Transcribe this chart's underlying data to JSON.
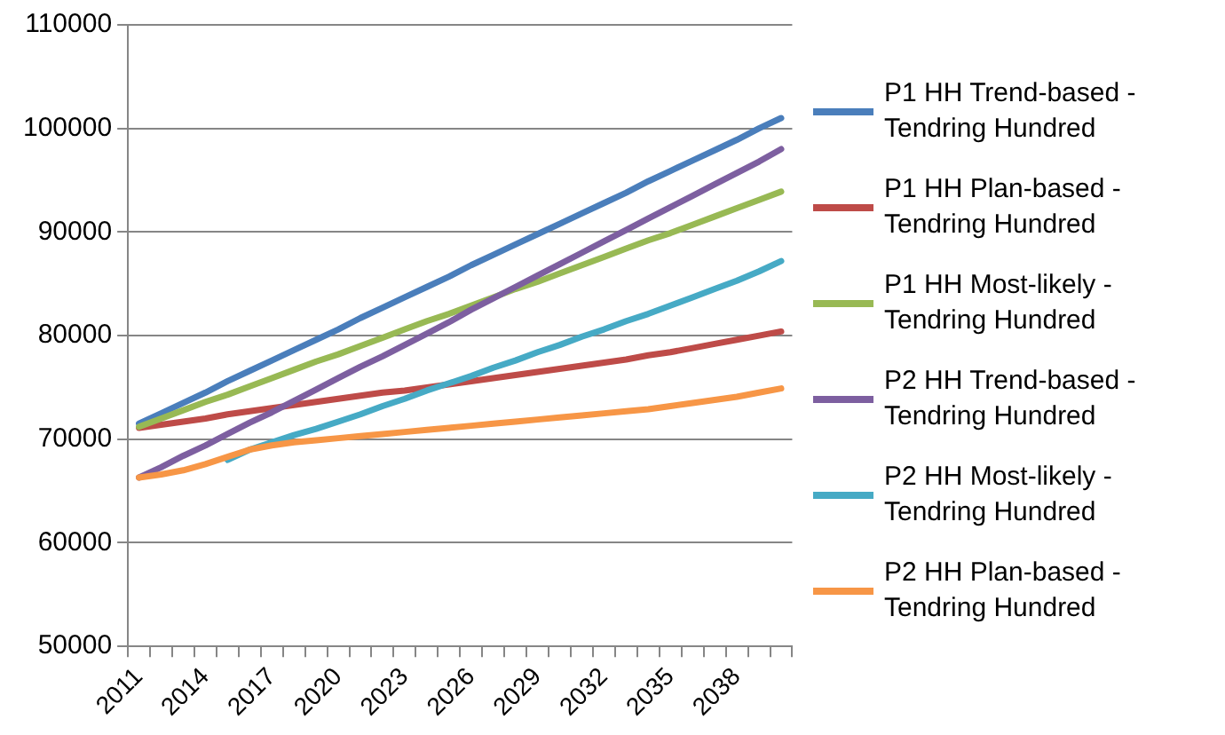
{
  "chart_data": {
    "type": "line",
    "categories": [
      "2011",
      null,
      null,
      "2014",
      null,
      null,
      "2017",
      null,
      null,
      "2020",
      null,
      null,
      "2023",
      null,
      null,
      "2026",
      null,
      null,
      "2029",
      null,
      null,
      "2032",
      null,
      null,
      "2035",
      null,
      null,
      "2038",
      null,
      null
    ],
    "ylim": [
      50000,
      110000
    ],
    "yticks": [
      50000,
      60000,
      70000,
      80000,
      90000,
      100000,
      110000
    ],
    "grid": "y",
    "legend": "right",
    "marker": "none",
    "line_style": "solid",
    "series": [
      {
        "name": "P1 HH Trend-based - Tendring Hundred",
        "color": "#4a7ebb",
        "values": [
          71500,
          72500,
          73500,
          74500,
          75600,
          76600,
          77600,
          78600,
          79600,
          80600,
          81700,
          82700,
          83700,
          84700,
          85700,
          86800,
          87800,
          88800,
          89800,
          90800,
          91800,
          92800,
          93800,
          94900,
          95900,
          96900,
          97900,
          98900,
          100000,
          101000
        ]
      },
      {
        "name": "P1 HH Plan-based - Tendring Hundred",
        "color": "#be4b48",
        "values": [
          71100,
          71400,
          71700,
          72000,
          72400,
          72700,
          73000,
          73300,
          73600,
          73900,
          74200,
          74500,
          74700,
          75000,
          75300,
          75600,
          75900,
          76200,
          76500,
          76800,
          77100,
          77400,
          77700,
          78100,
          78400,
          78800,
          79200,
          79600,
          80000,
          80400
        ]
      },
      {
        "name": "P1 HH Most-likely - Tendring Hundred",
        "color": "#98b954",
        "values": [
          71200,
          72000,
          72800,
          73600,
          74300,
          75100,
          75900,
          76700,
          77500,
          78200,
          79000,
          79800,
          80600,
          81400,
          82100,
          82900,
          83700,
          84500,
          85200,
          86000,
          86800,
          87600,
          88400,
          89200,
          89900,
          90700,
          91500,
          92300,
          93100,
          93900
        ]
      },
      {
        "name": "P2 HH Trend-based - Tendring Hundred",
        "color": "#7d5fa0",
        "values": [
          66300,
          67300,
          68400,
          69400,
          70500,
          71600,
          72600,
          73700,
          74800,
          75900,
          77000,
          78000,
          79100,
          80200,
          81300,
          82500,
          83600,
          84700,
          85800,
          86900,
          88000,
          89100,
          90200,
          91300,
          92400,
          93500,
          94600,
          95700,
          96800,
          98000
        ]
      },
      {
        "name": "P2 HH Most-likely - Tendring Hundred",
        "color": "#46aac5",
        "values": [
          null,
          null,
          null,
          null,
          68000,
          69000,
          69700,
          70400,
          71000,
          71700,
          72400,
          73200,
          73900,
          74700,
          75400,
          76100,
          76900,
          77600,
          78400,
          79100,
          79900,
          80600,
          81400,
          82100,
          82900,
          83700,
          84500,
          85300,
          86200,
          87200
        ]
      },
      {
        "name": "P2 HH Plan-based - Tendring Hundred",
        "color": "#f79646",
        "values": [
          66300,
          66600,
          67000,
          67600,
          68300,
          69000,
          69400,
          69700,
          69900,
          70100,
          70300,
          70500,
          70700,
          70900,
          71100,
          71300,
          71500,
          71700,
          71900,
          72100,
          72300,
          72500,
          72700,
          72900,
          73200,
          73500,
          73800,
          74100,
          74500,
          74900
        ]
      }
    ]
  }
}
